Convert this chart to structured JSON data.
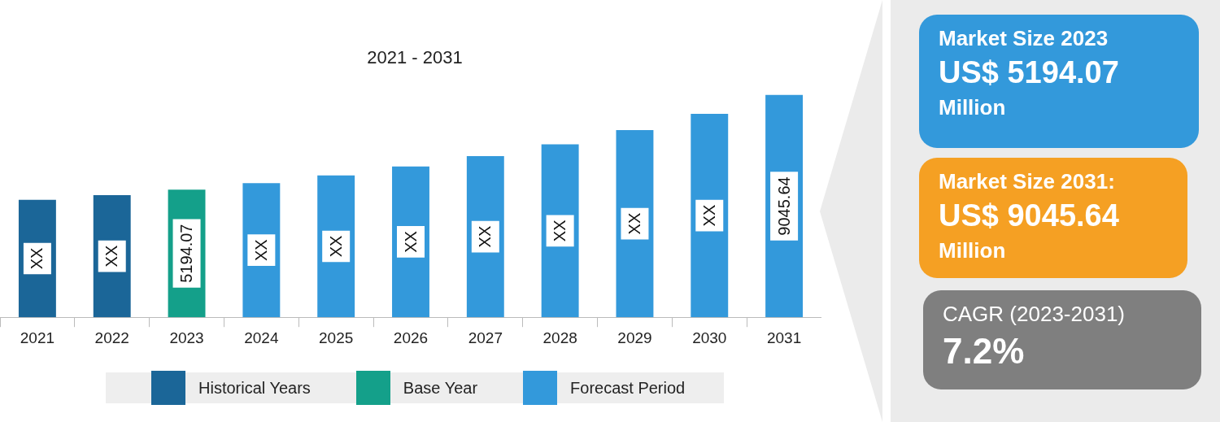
{
  "chart_data": [
    {
      "type": "bar",
      "title": "2021 - 2031",
      "tick_labels": "x",
      "categories": [
        "2021",
        "2022",
        "2023",
        "2024",
        "2025",
        "2026",
        "2027",
        "2028",
        "2029",
        "2030",
        "2031"
      ],
      "series": [
        {
          "name": "Historical Years",
          "color": "#1b6698",
          "values": [
            4780,
            4970,
            null,
            null,
            null,
            null,
            null,
            null,
            null,
            null,
            null
          ],
          "value_labels": [
            "XX",
            "XX",
            null,
            null,
            null,
            null,
            null,
            null,
            null,
            null,
            null
          ]
        },
        {
          "name": "Base Year",
          "color": "#14a08a",
          "values": [
            null,
            null,
            5194.07,
            null,
            null,
            null,
            null,
            null,
            null,
            null,
            null
          ],
          "value_labels": [
            null,
            null,
            "5194.07",
            null,
            null,
            null,
            null,
            null,
            null,
            null,
            null
          ]
        },
        {
          "name": "Forecast Period",
          "color": "#3399db",
          "values": [
            null,
            null,
            null,
            5460,
            5770,
            6140,
            6560,
            7040,
            7620,
            8280,
            9045.64
          ],
          "value_labels": [
            null,
            null,
            null,
            "XX",
            "XX",
            "XX",
            "XX",
            "XX",
            "XX",
            "XX",
            "9045.64"
          ]
        }
      ],
      "legend": "bottom",
      "grid": false
    },
    {
      "type": "other",
      "annotations": [
        "Market Size 2023",
        "US$ 5194.07",
        "Million",
        "Market Size 2031:",
        "US$ 9045.64",
        "Million",
        "CAGR (2023-2031)",
        "7.2%"
      ],
      "colors": [
        "#3399db",
        "#f5a023",
        "#7f7f7f"
      ]
    }
  ]
}
